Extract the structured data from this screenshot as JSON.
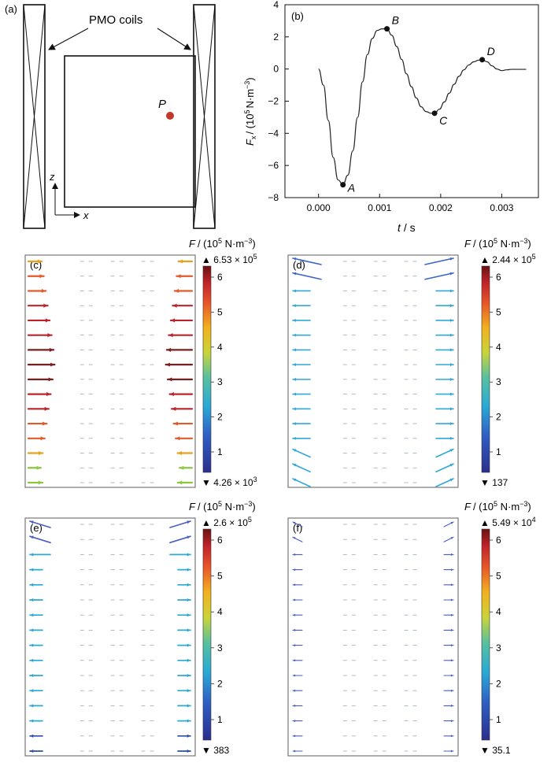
{
  "panel_a": {
    "tag": "(a)",
    "coils_label": "PMO coils",
    "point_label": "P",
    "axis_z": "z",
    "axis_x": "x"
  },
  "panel_b": {
    "tag": "(b)",
    "ylabel_main": "F",
    "ylabel_sub": "x",
    "ylabel_unit_pre": "/ (10",
    "ylabel_unit_exp": "5",
    "ylabel_unit_post": "N·m",
    "ylabel_unit_exp2": "−3",
    "ylabel_unit_close": ")",
    "xlabel_main": "t",
    "xlabel_unit": "/ s"
  },
  "chart_data": {
    "type": "line",
    "xlabel": "t / s",
    "ylabel": "Fx / (10^5 N·m^-3)",
    "xlim": [
      -0.00055,
      0.0036
    ],
    "ylim": [
      -8,
      4
    ],
    "xticks": [
      "0.000",
      "0.001",
      "0.002",
      "0.003"
    ],
    "yticks": [
      "4",
      "2",
      "0",
      "−2",
      "−4",
      "−6",
      "−8"
    ],
    "grid": false,
    "series": [
      {
        "x": [
          0.0,
          8e-05,
          0.00016,
          0.00024,
          0.00032,
          0.0004,
          0.00048,
          0.00056,
          0.00064,
          0.00072,
          0.0008,
          0.00088,
          0.00096,
          0.00104,
          0.00112,
          0.0012,
          0.00128,
          0.00136,
          0.00144,
          0.00152,
          0.0016,
          0.00168,
          0.00176,
          0.00184,
          0.0019,
          0.00198,
          0.00206,
          0.00214,
          0.00222,
          0.0023,
          0.00238,
          0.00246,
          0.00254,
          0.00262,
          0.00268,
          0.00276,
          0.00284,
          0.00292,
          0.003,
          0.00308,
          0.00316,
          0.00324,
          0.00332,
          0.0034
        ],
        "y": [
          0.0,
          -1.0,
          -3.2,
          -5.5,
          -6.9,
          -7.2,
          -6.6,
          -5.1,
          -3.0,
          -0.8,
          0.9,
          1.9,
          2.4,
          2.5,
          2.5,
          2.1,
          1.4,
          0.6,
          -0.3,
          -1.1,
          -1.8,
          -2.35,
          -2.65,
          -2.75,
          -2.75,
          -2.5,
          -2.05,
          -1.5,
          -0.95,
          -0.45,
          -0.05,
          0.25,
          0.45,
          0.55,
          0.58,
          0.45,
          0.2,
          0.0,
          -0.1,
          -0.05,
          -0.02,
          -0.02,
          -0.02,
          -0.02
        ]
      }
    ],
    "markers": [
      {
        "label": "A",
        "x": 0.0004,
        "y": -7.2
      },
      {
        "label": "B",
        "x": 0.00112,
        "y": 2.5
      },
      {
        "label": "C",
        "x": 0.0019,
        "y": -2.75
      },
      {
        "label": "D",
        "x": 0.00268,
        "y": 0.58
      }
    ]
  },
  "field_panels": [
    {
      "tag": "(c)",
      "title_main": "F",
      "title_unit": "/ (10",
      "title_exp": "5",
      "title_post": " N·m",
      "title_exp2": "−3",
      "title_close": ")",
      "max_label": "▲ 6.53 × 10",
      "max_exp": "5",
      "min_label": "▼ 4.26 × 10",
      "min_exp": "3",
      "ticks": [
        "6",
        "5",
        "4",
        "3",
        "2",
        "1"
      ]
    },
    {
      "tag": "(d)",
      "title_main": "F",
      "title_unit": "/ (10",
      "title_exp": "5",
      "title_post": " N·m",
      "title_exp2": "−3",
      "title_close": ")",
      "max_label": "▲ 2.44 × 10",
      "max_exp": "5",
      "min_label": "▼ 137",
      "min_exp": "",
      "ticks": [
        "6",
        "5",
        "4",
        "3",
        "2",
        "1"
      ]
    },
    {
      "tag": "(e)",
      "title_main": "F",
      "title_unit": "/ (10",
      "title_exp": "5",
      "title_post": " N·m",
      "title_exp2": "−3",
      "title_close": ")",
      "max_label": "▲ 2.6 × 10",
      "max_exp": "5",
      "min_label": "▼ 383",
      "min_exp": "",
      "ticks": [
        "6",
        "5",
        "4",
        "3",
        "2",
        "1"
      ]
    },
    {
      "tag": "(f)",
      "title_main": "F",
      "title_unit": "/ (10",
      "title_exp": "5",
      "title_post": " N·m",
      "title_exp2": "−3",
      "title_close": ")",
      "max_label": "▲ 5.49 × 10",
      "max_exp": "4",
      "min_label": "▼ 35.1",
      "min_exp": "",
      "ticks": [
        "6",
        "5",
        "4",
        "3",
        "2",
        "1"
      ]
    }
  ],
  "colors": {
    "point": "#c0392b",
    "arrow_c_strong": "#7a1e1e",
    "arrow_d": "#3a7fd0",
    "arrow_e": "#2aa9d6",
    "arrow_f": "#4a5ec0"
  }
}
